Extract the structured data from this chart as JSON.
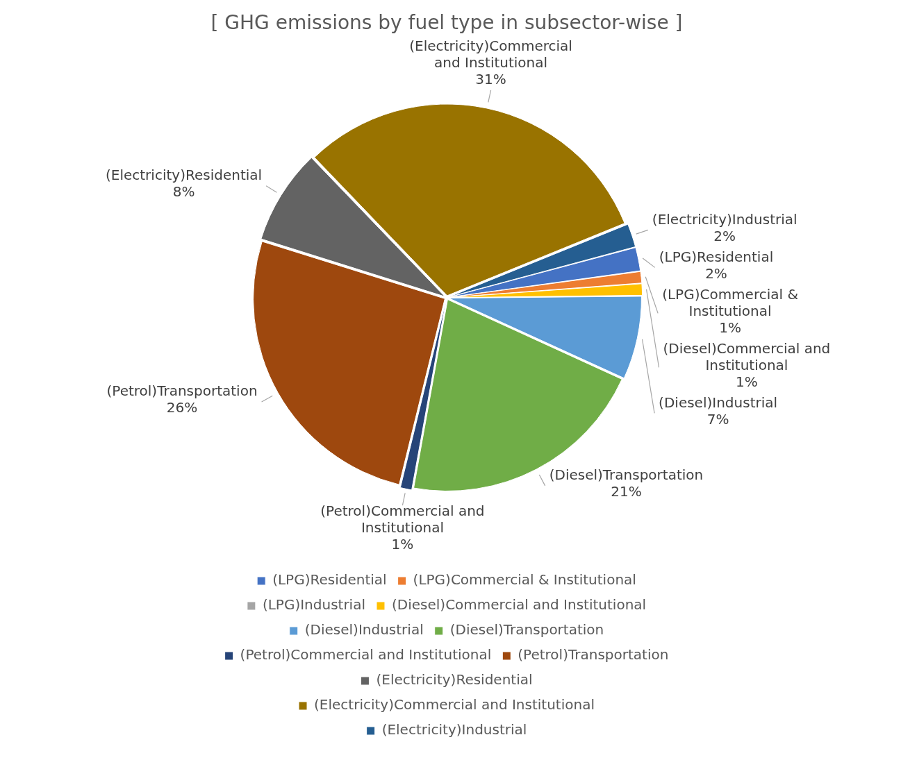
{
  "chart_data": {
    "type": "pie",
    "title": "[ GHG emissions by fuel type in subsector-wise ]",
    "categories": [
      "(LPG)Residential",
      "(LPG)Commercial & Institutional",
      "(LPG)Industrial",
      "(Diesel)Commercial and Institutional",
      "(Diesel)Industrial",
      "(Diesel)Transportation",
      "(Petrol)Commercial and Institutional",
      "(Petrol)Transportation",
      "(Electricity)Residential",
      "(Electricity)Commercial and Institutional",
      "(Electricity)Industrial"
    ],
    "values": [
      2,
      1,
      0,
      1,
      7,
      21,
      1,
      26,
      8,
      31,
      2
    ],
    "value_labels": [
      "2%",
      "1%",
      null,
      "1%",
      "7%",
      "21%",
      "1%",
      "26%",
      "8%",
      "31%",
      "2%"
    ],
    "colors": [
      "#4472c4",
      "#ed7d31",
      "#a5a5a5",
      "#ffc000",
      "#5b9bd5",
      "#70ad47",
      "#264478",
      "#9e480e",
      "#636363",
      "#997300",
      "#255e91"
    ],
    "legend": "bottom"
  }
}
